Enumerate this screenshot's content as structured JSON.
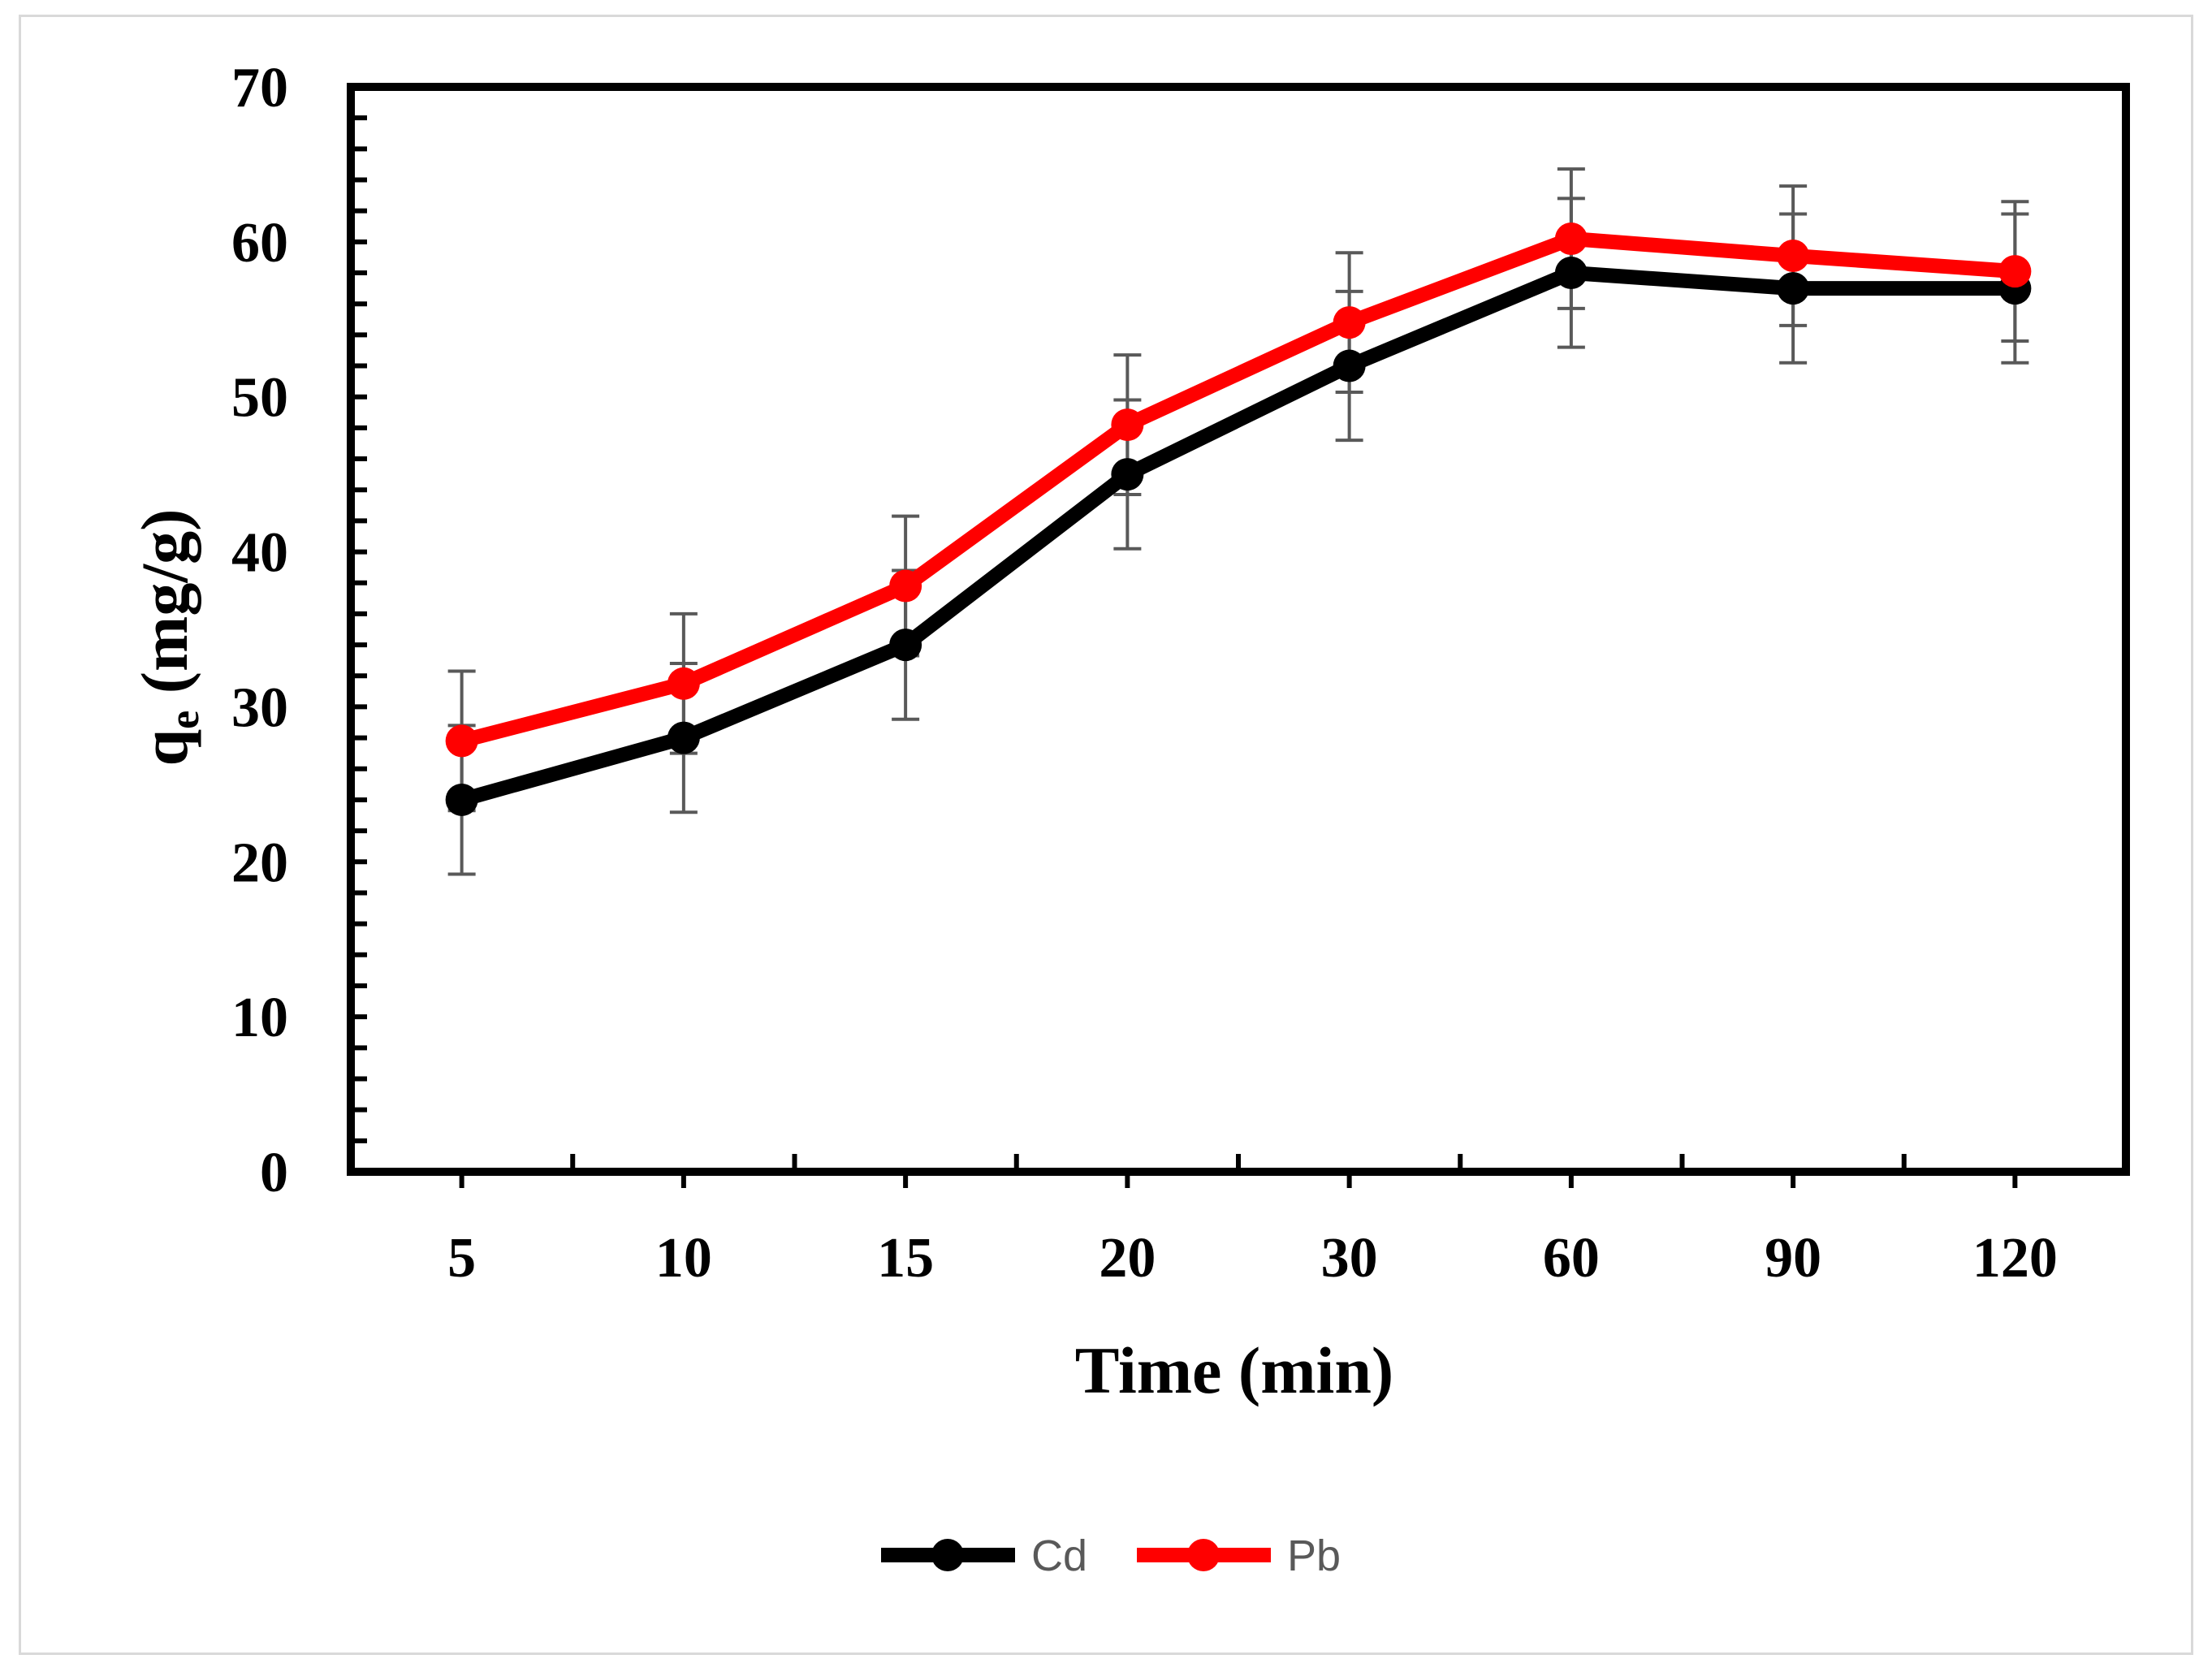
{
  "chart_data": {
    "type": "line",
    "xlabel": "Time (min)",
    "ylabel": {
      "main": "q",
      "subscript": "e",
      "unit": " (mg/g)"
    },
    "categories": [
      "5",
      "10",
      "15",
      "20",
      "30",
      "60",
      "90",
      "120"
    ],
    "ylim": [
      0,
      70
    ],
    "yticks": [
      "0",
      "10",
      "20",
      "30",
      "40",
      "50",
      "60",
      "70"
    ],
    "grid": false,
    "legend_position": "bottom",
    "error_bar_color": "#595959",
    "series": [
      {
        "name": "Cd",
        "color": "#000000",
        "values": [
          24,
          28,
          34,
          45,
          52,
          58,
          57,
          57
        ],
        "errors": [
          4.8,
          4.8,
          4.8,
          4.8,
          4.8,
          4.8,
          4.8,
          4.8
        ]
      },
      {
        "name": "Pb",
        "color": "#ff0000",
        "values": [
          27.8,
          31.5,
          37.8,
          48.2,
          54.8,
          60.2,
          59.1,
          58.1
        ],
        "errors": [
          4.5,
          4.5,
          4.5,
          4.5,
          4.5,
          4.5,
          4.5,
          4.5
        ]
      }
    ]
  }
}
